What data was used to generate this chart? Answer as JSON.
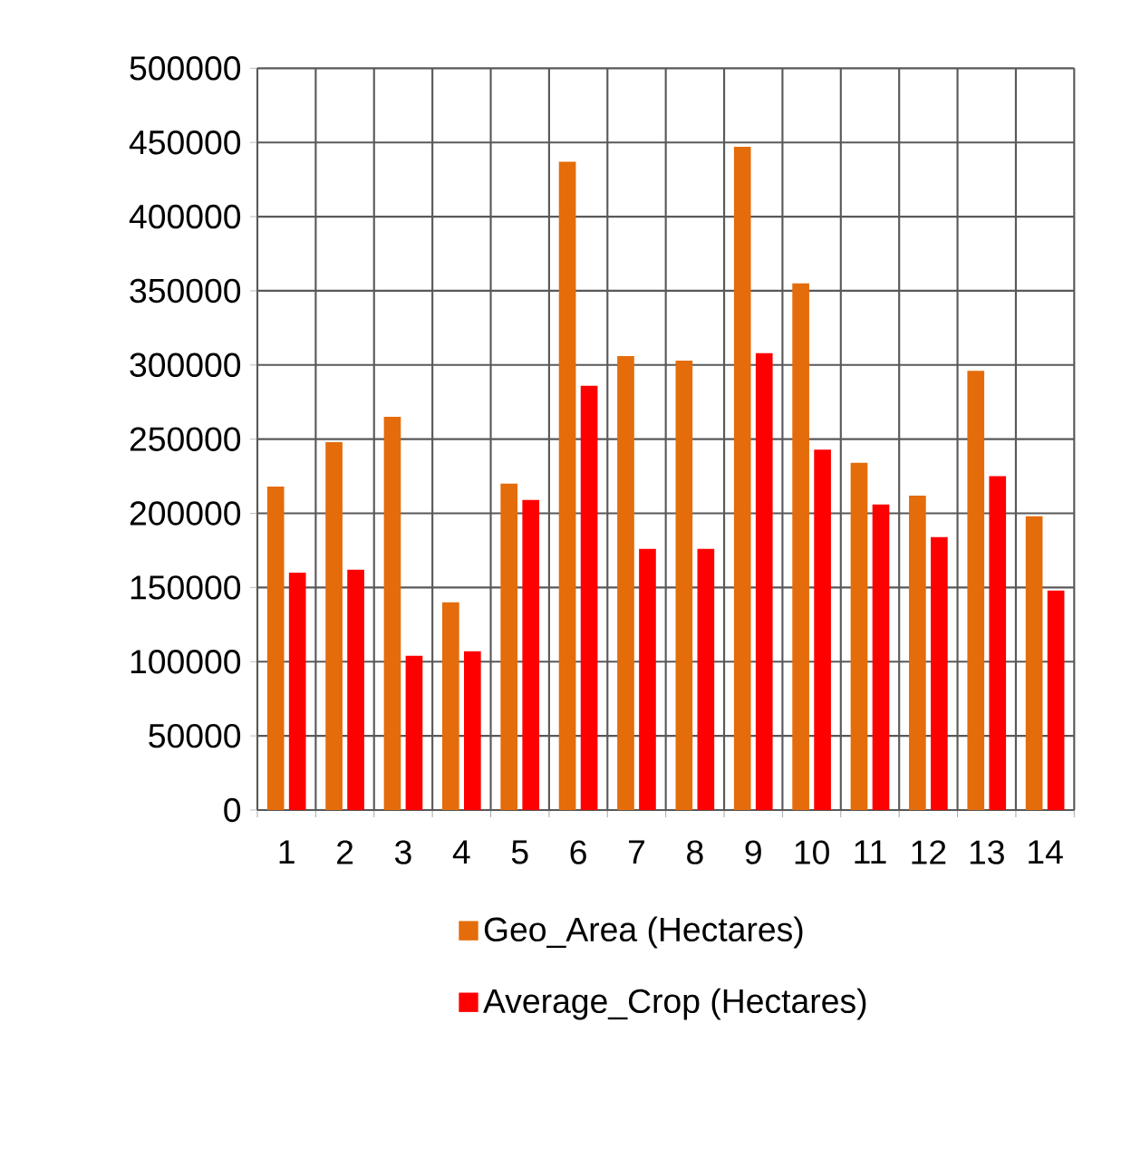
{
  "chart_data": {
    "type": "bar",
    "categories": [
      "1",
      "2",
      "3",
      "4",
      "5",
      "6",
      "7",
      "8",
      "9",
      "10",
      "11",
      "12",
      "13",
      "14"
    ],
    "series": [
      {
        "name": "Geo_Area  (Hectares)",
        "color": "#e46c0a",
        "values": [
          218000,
          248000,
          265000,
          140000,
          220000,
          437000,
          306000,
          303000,
          447000,
          355000,
          234000,
          212000,
          296000,
          198000
        ]
      },
      {
        "name": "Average_Crop  (Hectares)",
        "color": "#ff0000",
        "values": [
          160000,
          162000,
          104000,
          107000,
          209000,
          286000,
          176000,
          176000,
          308000,
          243000,
          206000,
          184000,
          225000,
          148000
        ]
      }
    ],
    "ylim": [
      0,
      500000
    ],
    "yticks": [
      0,
      50000,
      100000,
      150000,
      200000,
      250000,
      300000,
      350000,
      400000,
      450000,
      500000
    ],
    "grid": true,
    "legend": "bottom"
  }
}
